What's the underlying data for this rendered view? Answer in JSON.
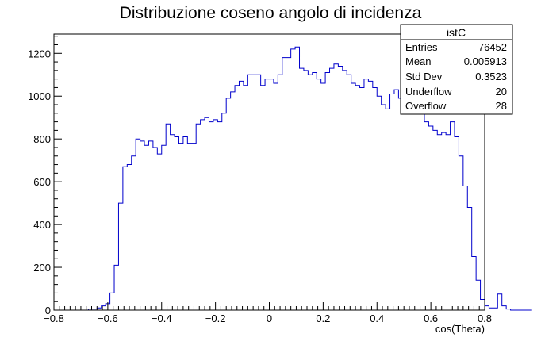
{
  "chart_data": {
    "type": "bar",
    "title": "Distribuzione coseno angolo di incidenza",
    "xlabel": "cos(Theta)",
    "ylabel": "",
    "xlim": [
      -0.8,
      0.8
    ],
    "ylim": [
      0,
      1290
    ],
    "bin_width": 0.016,
    "x_start": -0.8,
    "series_color": "#0000cc",
    "x_ticks": [
      -0.8,
      -0.6,
      -0.4,
      -0.2,
      0,
      0.2,
      0.4,
      0.6,
      0.8
    ],
    "x_tick_labels": [
      "−0.8",
      "−0.6",
      "−0.4",
      "−0.2",
      "0",
      "0.2",
      "0.4",
      "0.6",
      "0.8"
    ],
    "y_ticks": [
      0,
      200,
      400,
      600,
      800,
      1000,
      1200
    ],
    "y_tick_labels": [
      "0",
      "200",
      "400",
      "600",
      "800",
      "1000",
      "1200"
    ],
    "values": [
      0,
      0,
      0,
      0,
      0,
      0,
      0,
      0,
      5,
      5,
      10,
      20,
      30,
      80,
      210,
      500,
      670,
      680,
      720,
      800,
      790,
      770,
      790,
      760,
      730,
      770,
      870,
      820,
      810,
      780,
      810,
      780,
      780,
      870,
      890,
      900,
      880,
      890,
      880,
      920,
      990,
      1020,
      1050,
      1070,
      1050,
      1100,
      1100,
      1100,
      1050,
      1080,
      1080,
      1060,
      1100,
      1180,
      1180,
      1220,
      1230,
      1130,
      1120,
      1100,
      1110,
      1080,
      1060,
      1110,
      1130,
      1150,
      1140,
      1120,
      1100,
      1060,
      1050,
      1040,
      1080,
      1070,
      1040,
      1000,
      960,
      940,
      1010,
      1030,
      990,
      940,
      960,
      1020,
      1000,
      940,
      880,
      860,
      840,
      820,
      830,
      820,
      880,
      810,
      720,
      580,
      480,
      250,
      140,
      50,
      20,
      10,
      10,
      75,
      20,
      5,
      0,
      0,
      0,
      0,
      0
    ]
  },
  "stats_box": {
    "title": "istC",
    "rows": [
      {
        "label": "Entries",
        "value": "76452"
      },
      {
        "label": "Mean",
        "value": "0.005913"
      },
      {
        "label": "Std Dev",
        "value": "0.3523"
      },
      {
        "label": "Underflow",
        "value": "20"
      },
      {
        "label": "Overflow",
        "value": "28"
      }
    ]
  }
}
